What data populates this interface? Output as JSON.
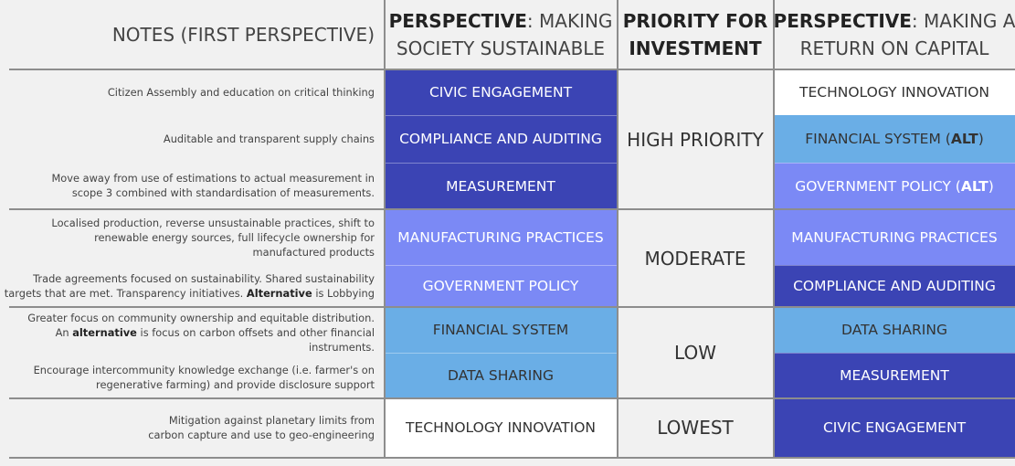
{
  "headers": {
    "notes": "NOTES (FIRST PERSPECTIVE)",
    "society_bold": "PERSPECTIVE",
    "society_line1_rest": ": MAKING",
    "society_line2": "SOCIETY SUSTAINABLE",
    "priority_line1": "PRIORITY FOR",
    "priority_line2": "INVESTMENT",
    "return_bold": "PERSPECTIVE",
    "return_line1_rest": ": MAKING A",
    "return_line2": "RETURN ON CAPITAL"
  },
  "notes": {
    "n1": "Citizen Assembly and education on critical thinking",
    "n2": "Auditable and transparent supply chains",
    "n3_line1": "Move away from use of estimations to actual measurement in",
    "n3_line2": "scope 3 combined with standardisation of measurements.",
    "n4_line1": "Localised production, reverse unsustainable practices, shift to",
    "n4_line2": "renewable energy sources, full lifecycle ownership for",
    "n4_line3": "manufactured products",
    "n5_line1": "Trade agreements focused on sustainability. Shared sustainability",
    "n5_line2_a": "targets that are met. Transparency initiatives. ",
    "n5_line2_bold": "Alternative",
    "n5_line2_b": " is Lobbying",
    "n6_line1": "Greater focus on community ownership and equitable distribution.",
    "n6_line2_a": "An ",
    "n6_line2_bold": "alternative",
    "n6_line2_b": " is focus on carbon offsets and other financial",
    "n6_line3": "instruments.",
    "n7_line1": "Encourage intercommunity knowledge exchange (i.e. farmer's on",
    "n7_line2": "regenerative farming) and provide disclosure support",
    "n8_line1": "Mitigation against planetary limits from",
    "n8_line2": "carbon capture and use to geo-engineering"
  },
  "society": [
    "CIVIC ENGAGEMENT",
    "COMPLIANCE AND AUDITING",
    "MEASUREMENT",
    "MANUFACTURING PRACTICES",
    "GOVERNMENT POLICY",
    "FINANCIAL SYSTEM",
    "DATA SHARING",
    "TECHNOLOGY INNOVATION"
  ],
  "priority": [
    "HIGH PRIORITY",
    "MODERATE",
    "LOW",
    "LOWEST"
  ],
  "returns": {
    "r1": "TECHNOLOGY INNOVATION",
    "r2_text": "FINANCIAL SYSTEM (",
    "r2_bold": "ALT",
    "r2_close": ")",
    "r3_text": "GOVERNMENT POLICY (",
    "r3_bold": "ALT",
    "r3_close": ")",
    "r4": "MANUFACTURING PRACTICES",
    "r5": "COMPLIANCE AND AUDITING",
    "r6": "DATA SHARING",
    "r7": "MEASUREMENT",
    "r8": "CIVIC ENGAGEMENT"
  },
  "colors": {
    "dark_blue": "#3b44b4",
    "medium_blue": "#7b89f5",
    "light_blue": "#6aaee6",
    "white": "#ffffff"
  }
}
